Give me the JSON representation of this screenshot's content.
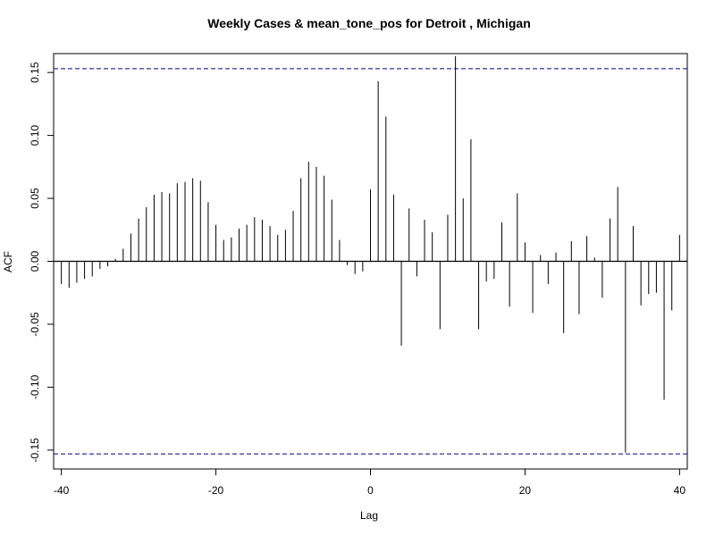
{
  "chart_data": {
    "type": "bar",
    "title": "Weekly Cases & mean_tone_pos for Detroit , Michigan",
    "xlabel": "Lag",
    "ylabel": "ACF",
    "xlim": [
      -41,
      41
    ],
    "ylim": [
      -0.165,
      0.165
    ],
    "x_ticks": [
      -40,
      -20,
      0,
      20,
      40
    ],
    "x_tick_labels": [
      "-40",
      "-20",
      "0",
      "20",
      "40"
    ],
    "y_ticks": [
      -0.15,
      -0.1,
      -0.05,
      0.0,
      0.05,
      0.1,
      0.15
    ],
    "y_tick_labels": [
      "-0.15",
      "-0.10",
      "-0.05",
      "0.00",
      "0.05",
      "0.10",
      "0.15"
    ],
    "confidence_bound": 0.153,
    "colors": {
      "bars": "#000000",
      "confidence": "#00008b",
      "zero_line": "#000000"
    },
    "lags": [
      -40,
      -39,
      -38,
      -37,
      -36,
      -35,
      -34,
      -33,
      -32,
      -31,
      -30,
      -29,
      -28,
      -27,
      -26,
      -25,
      -24,
      -23,
      -22,
      -21,
      -20,
      -19,
      -18,
      -17,
      -16,
      -15,
      -14,
      -13,
      -12,
      -11,
      -10,
      -9,
      -8,
      -7,
      -6,
      -5,
      -4,
      -3,
      -2,
      -1,
      0,
      1,
      2,
      3,
      4,
      5,
      6,
      7,
      8,
      9,
      10,
      11,
      12,
      13,
      14,
      15,
      16,
      17,
      18,
      19,
      20,
      21,
      22,
      23,
      24,
      25,
      26,
      27,
      28,
      29,
      30,
      31,
      32,
      33,
      34,
      35,
      36,
      37,
      38,
      39,
      40
    ],
    "values": [
      -0.018,
      -0.021,
      -0.017,
      -0.014,
      -0.012,
      -0.006,
      -0.004,
      0.002,
      0.01,
      0.022,
      0.034,
      0.043,
      0.053,
      0.055,
      0.054,
      0.062,
      0.063,
      0.066,
      0.064,
      0.047,
      0.029,
      0.017,
      0.019,
      0.026,
      0.029,
      0.035,
      0.033,
      0.028,
      0.021,
      0.025,
      0.04,
      0.066,
      0.079,
      0.075,
      0.068,
      0.049,
      0.017,
      -0.003,
      -0.01,
      -0.008,
      0.057,
      0.143,
      0.115,
      0.053,
      -0.067,
      0.042,
      -0.012,
      0.033,
      0.023,
      -0.054,
      0.037,
      0.163,
      0.05,
      0.097,
      -0.054,
      -0.016,
      -0.014,
      0.031,
      -0.036,
      0.054,
      0.015,
      -0.041,
      0.005,
      -0.018,
      0.007,
      -0.057,
      0.016,
      -0.042,
      0.02,
      0.003,
      -0.029,
      0.034,
      0.059,
      -0.152,
      0.028,
      -0.035,
      -0.026,
      -0.025,
      -0.11,
      -0.039,
      0.021
    ]
  }
}
